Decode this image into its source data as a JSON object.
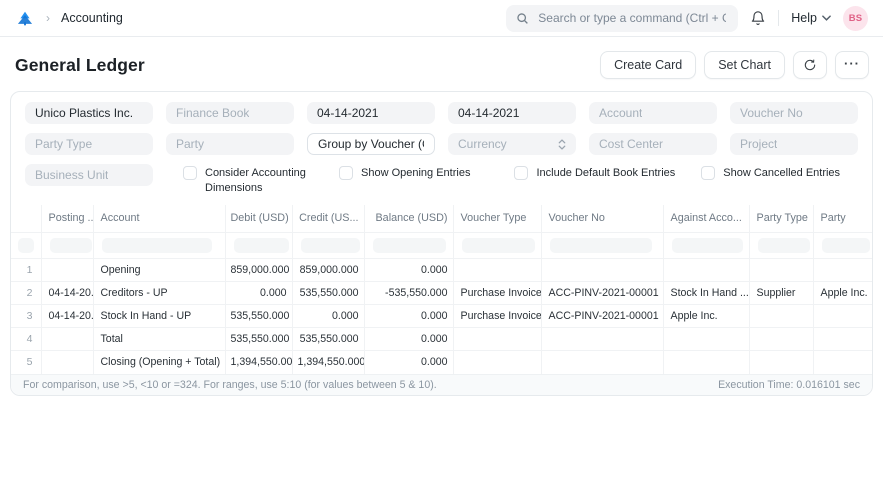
{
  "colors": {
    "accent": "#2490ef",
    "avatar_bg": "#fce4ec",
    "avatar_text": "#e06287"
  },
  "navbar": {
    "breadcrumb": "Accounting",
    "search_placeholder": "Search or type a command (Ctrl + G)",
    "help_label": "Help",
    "avatar_initials": "BS"
  },
  "page": {
    "title": "General Ledger",
    "actions": {
      "create_card": "Create Card",
      "set_chart": "Set Chart"
    }
  },
  "filters": {
    "fields": [
      {
        "text": "Unico Plastics Inc.",
        "filled": true
      },
      {
        "text": "Finance Book",
        "filled": false
      },
      {
        "text": "04-14-2021",
        "filled": true
      },
      {
        "text": "04-14-2021",
        "filled": true
      },
      {
        "text": "Account",
        "filled": false
      },
      {
        "text": "Voucher No",
        "filled": false
      },
      {
        "text": "Party Type",
        "filled": false
      },
      {
        "text": "Party",
        "filled": false
      },
      {
        "text": "Group by Voucher (Consol",
        "filled": true
      },
      {
        "text": "Currency",
        "filled": false
      },
      {
        "text": "Cost Center",
        "filled": false
      },
      {
        "text": "Project",
        "filled": false
      },
      {
        "text": "Business Unit",
        "filled": false
      }
    ],
    "checkboxes": [
      "Consider Accounting Dimensions",
      "Show Opening Entries",
      "Include Default Book Entries",
      "Show Cancelled Entries"
    ]
  },
  "table": {
    "columns": [
      "",
      "Posting ...",
      "Account",
      "Debit (USD)",
      "Credit (US...",
      "Balance (USD)",
      "Voucher Type",
      "Voucher No",
      "Against Acco...",
      "Party Type",
      "Party"
    ],
    "rows": [
      {
        "idx": "1",
        "cells": [
          "",
          "Opening",
          "859,000.000",
          "859,000.000",
          "0.000",
          "",
          "",
          "",
          "",
          ""
        ]
      },
      {
        "idx": "2",
        "cells": [
          "04-14-20...",
          "Creditors - UP",
          "0.000",
          "535,550.000",
          "-535,550.000",
          "Purchase Invoice",
          "ACC-PINV-2021-00001",
          "Stock In Hand ...",
          "Supplier",
          "Apple Inc."
        ]
      },
      {
        "idx": "3",
        "cells": [
          "04-14-20...",
          "Stock In Hand - UP",
          "535,550.000",
          "0.000",
          "0.000",
          "Purchase Invoice",
          "ACC-PINV-2021-00001",
          "Apple Inc.",
          "",
          ""
        ]
      },
      {
        "idx": "4",
        "cells": [
          "",
          "Total",
          "535,550.000",
          "535,550.000",
          "0.000",
          "",
          "",
          "",
          "",
          ""
        ]
      },
      {
        "idx": "5",
        "cells": [
          "",
          "Closing (Opening + Total)",
          "1,394,550.000",
          "1,394,550.000",
          "0.000",
          "",
          "",
          "",
          "",
          ""
        ]
      }
    ]
  },
  "footer": {
    "hint": "For comparison, use >5, <10 or =324. For ranges, use 5:10 (for values between 5 & 10).",
    "execution_time": "Execution Time: 0.016101 sec"
  }
}
